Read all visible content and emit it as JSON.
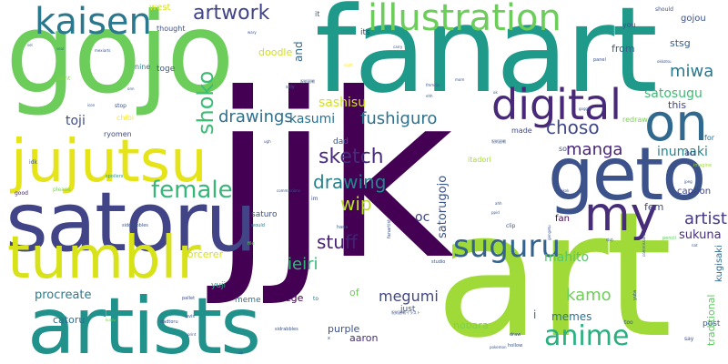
{
  "cloud": {
    "words": [
      {
        "text": "jjk",
        "color": "#440154"
      },
      {
        "text": "art",
        "color": "#a0da39"
      },
      {
        "text": "fanart",
        "color": "#1f9a8a"
      },
      {
        "text": "gojo",
        "color": "#6ccd5a"
      },
      {
        "text": "satoru",
        "color": "#414487"
      },
      {
        "text": "artists",
        "color": "#21918c"
      },
      {
        "text": "jujutsu",
        "color": "#e5e419"
      },
      {
        "text": "tumblr",
        "color": "#d8e219"
      },
      {
        "text": "geto",
        "color": "#3b528b"
      },
      {
        "text": "illustration",
        "color": "#6ccd5a"
      },
      {
        "text": "kaisen",
        "color": "#2a788e"
      },
      {
        "text": "digital",
        "color": "#482878"
      },
      {
        "text": "on",
        "color": "#31688e"
      },
      {
        "text": "my",
        "color": "#472c7a"
      },
      {
        "text": "suguru",
        "color": "#33638d"
      },
      {
        "text": "anime",
        "color": "#2ab07f"
      },
      {
        "text": "shoko",
        "color": "#3dbc74"
      },
      {
        "text": "female",
        "color": "#35b779"
      },
      {
        "text": "artwork",
        "color": "#404387"
      },
      {
        "text": "drawings",
        "color": "#2d708e"
      },
      {
        "text": "fushiguro",
        "color": "#2c728e"
      },
      {
        "text": "sketch",
        "color": "#472a7a"
      },
      {
        "text": "drawing",
        "color": "#26828e"
      },
      {
        "text": "choso",
        "color": "#3f4889"
      },
      {
        "text": "miwa",
        "color": "#2a788e"
      },
      {
        "text": "manga",
        "color": "#482475"
      },
      {
        "text": "artist",
        "color": "#443983"
      },
      {
        "text": "stuff",
        "color": "#482173"
      },
      {
        "text": "wip",
        "color": "#b8de29"
      },
      {
        "text": "sashisu",
        "color": "#d2e21b"
      },
      {
        "text": "kasumi",
        "color": "#2d708e"
      },
      {
        "text": "satosugu",
        "color": "#3dbc74"
      },
      {
        "text": "toji",
        "color": "#3e4c8a"
      },
      {
        "text": "megumi",
        "color": "#3f4788"
      },
      {
        "text": "ieiri",
        "color": "#35b779"
      },
      {
        "text": "kamo",
        "color": "#6ece58"
      },
      {
        "text": "procreate",
        "color": "#287c8e"
      },
      {
        "text": "inumaki",
        "color": "#25838e"
      },
      {
        "text": "mahito",
        "color": "#56c667"
      },
      {
        "text": "memes",
        "color": "#2c728e"
      },
      {
        "text": "satorugojo",
        "color": "#3a538b"
      },
      {
        "text": "oc",
        "color": "#404588"
      },
      {
        "text": "sukuna",
        "color": "#472d7b"
      },
      {
        "text": "stsg",
        "color": "#365c8d"
      },
      {
        "text": "from",
        "color": "#355f8d"
      },
      {
        "text": "doodle",
        "color": "#d0e11c"
      },
      {
        "text": "traditional",
        "color": "#5ec962"
      },
      {
        "text": "kugisaki",
        "color": "#31688e"
      },
      {
        "text": "catoru",
        "color": "#2e6e8e"
      },
      {
        "text": "nobara",
        "color": "#7ad151"
      },
      {
        "text": "sorcerer",
        "color": "#d5e21a"
      },
      {
        "text": "college",
        "color": "#440154"
      },
      {
        "text": "of",
        "color": "#6ece58"
      },
      {
        "text": "aaron",
        "color": "#472d7b"
      },
      {
        "text": "purple",
        "color": "#3b528b"
      },
      {
        "text": "fem",
        "color": "#3f4889"
      },
      {
        "text": "caption",
        "color": "#404387"
      },
      {
        "text": "gojou",
        "color": "#3b528b"
      },
      {
        "text": "this",
        "color": "#414487"
      },
      {
        "text": "west",
        "color": "#d8e219"
      },
      {
        "text": "toge",
        "color": "#39568c"
      },
      {
        "text": "yuji",
        "color": "#20a486"
      },
      {
        "text": "meme",
        "color": "#2d708e"
      },
      {
        "text": "saturo",
        "color": "#3b528b"
      },
      {
        "text": "post",
        "color": "#375a8c"
      },
      {
        "text": "just",
        "color": "#3b528b"
      },
      {
        "text": "and",
        "color": "#31688e"
      },
      {
        "text": "au",
        "color": "#3f4889"
      },
      {
        "text": "i",
        "color": "#31688e"
      },
      {
        "text": "fan",
        "color": "#440154"
      },
      {
        "text": "its",
        "color": "#443a83"
      },
      {
        "text": "dad",
        "color": "#3b528b"
      },
      {
        "text": "itadori",
        "color": "#a5db36"
      },
      {
        "text": "for",
        "color": "#306a8e"
      },
      {
        "text": "ryomen",
        "color": "#3e4989"
      },
      {
        "text": "chibi",
        "color": "#fde725"
      },
      {
        "text": "thought",
        "color": "#3b528b"
      },
      {
        "text": "nine",
        "color": "#2a788e"
      },
      {
        "text": "redraw",
        "color": "#7ad151"
      },
      {
        "text": "you",
        "color": "#3b528b"
      },
      {
        "text": "made",
        "color": "#3e4989"
      },
      {
        "text": "so",
        "color": "#3b528b"
      },
      {
        "text": "it",
        "color": "#3b528b"
      },
      {
        "text": "should",
        "color": "#3b528b"
      },
      {
        "text": "paint",
        "color": "#7fd34e"
      },
      {
        "text": "stop",
        "color": "#3b528b"
      },
      {
        "text": "good",
        "color": "#482475"
      },
      {
        "text": "idk",
        "color": "#3b528b"
      },
      {
        "text": "clip",
        "color": "#3b528b"
      },
      {
        "text": "hana",
        "color": "#3b528b"
      },
      {
        "text": "im",
        "color": "#3b528b"
      },
      {
        "text": "to",
        "color": "#2a788e"
      },
      {
        "text": "x",
        "color": "#3b528b"
      },
      {
        "text": "studio",
        "color": "#3b528b"
      },
      {
        "text": "too",
        "color": "#3b528b"
      },
      {
        "text": "say",
        "color": "#3b528b"
      },
      {
        "text": "draw",
        "color": "#3b528b"
      },
      {
        "text": "hollow",
        "color": "#3b528b"
      },
      {
        "text": "panel",
        "color": "#3b528b"
      },
      {
        "text": "siddrabbles",
        "color": "#3b528b"
      },
      {
        "text": "mexiarts",
        "color": "#3b528b"
      },
      {
        "text": "please",
        "color": "#7ad151"
      },
      {
        "text": "spoilers",
        "color": "#1f9a8a"
      },
      {
        "text": "commissions",
        "color": "#3b528b"
      },
      {
        "text": "sidrabbles",
        "color": "#3b528b"
      },
      {
        "text": "imagine",
        "color": "#a0da39"
      },
      {
        "text": "pencil",
        "color": "#5ec962"
      },
      {
        "text": "jpeg",
        "color": "#3b528b"
      },
      {
        "text": "dadtoru",
        "color": "#3b528b"
      },
      {
        "text": "sight",
        "color": "#fde725"
      },
      {
        "text": "carry",
        "color": "#3b528b"
      },
      {
        "text": "okkotsu",
        "color": "#3b528b"
      },
      {
        "text": "wary",
        "color": "#3b528b"
      },
      {
        "text": "pallet",
        "color": "#3b528b"
      },
      {
        "text": "avis",
        "color": "#3b528b"
      },
      {
        "text": "silly",
        "color": "#3b528b"
      },
      {
        "text": "fanartist",
        "color": "#3b528b"
      },
      {
        "text": "yuta",
        "color": "#3b528b"
      },
      {
        "text": "file",
        "color": "#5ec962"
      },
      {
        "text": "kutsu",
        "color": "#7ad151"
      },
      {
        "text": "print",
        "color": "#3b528b"
      },
      {
        "text": "gengetu",
        "color": "#3b528b"
      },
      {
        "text": "would",
        "color": "#2a788e"
      },
      {
        "text": "commissions",
        "color": "#3b528b"
      },
      {
        "text": "pokemon",
        "color": "#3b528b"
      },
      {
        "text": "ゆめ",
        "color": "#3b528b"
      },
      {
        "text": "呪術廻戦",
        "color": "#3b528b"
      },
      {
        "text": "呪術廻戦",
        "color": "#3b528b"
      },
      {
        "text": "呪術廻戦イラスト",
        "color": "#3b528b"
      },
      {
        "text": "fmmdjv",
        "color": "#3b528b"
      },
      {
        "text": "icon",
        "color": "#3b528b"
      },
      {
        "text": "ppid",
        "color": "#3b528b"
      },
      {
        "text": "ehh",
        "color": "#3b528b"
      },
      {
        "text": "goggle",
        "color": "#3b528b"
      },
      {
        "text": "seal",
        "color": "#2a788e"
      },
      {
        "text": "mom",
        "color": "#3b528b"
      },
      {
        "text": "sel",
        "color": "#3b528b"
      },
      {
        "text": "ahh",
        "color": "#3b528b"
      },
      {
        "text": "onn",
        "color": "#3b528b"
      },
      {
        "text": "nat",
        "color": "#3b528b"
      },
      {
        "text": "ok",
        "color": "#3b528b"
      },
      {
        "text": "up",
        "color": "#3b528b"
      },
      {
        "text": "ugh",
        "color": "#3b528b"
      },
      {
        "text": "okok",
        "color": "#3b528b"
      }
    ]
  }
}
